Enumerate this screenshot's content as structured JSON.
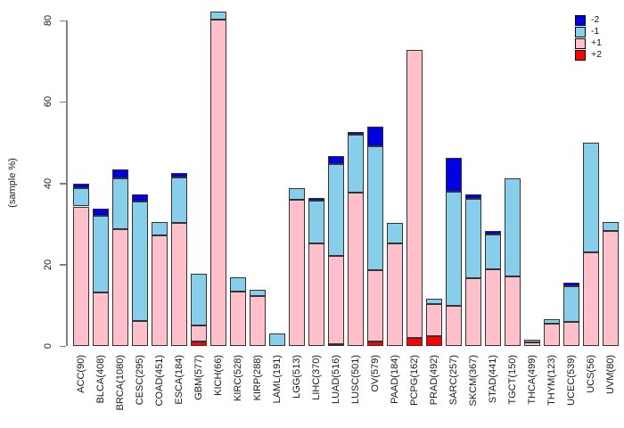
{
  "chart_data": {
    "type": "bar",
    "subtype": "stacked-vertical",
    "title": "",
    "xlabel": "",
    "ylabel": "(sample %)",
    "ylim": [
      0,
      80
    ],
    "yticks": [
      0,
      20,
      40,
      60,
      80
    ],
    "grid": false,
    "legend_position": "top-right",
    "legend": [
      {
        "label": "-2",
        "color": "#0000E0"
      },
      {
        "label": "-1",
        "color": "#87CEEB"
      },
      {
        "label": "+1",
        "color": "#FFC0CB"
      },
      {
        "label": "+2",
        "color": "#FF0000"
      }
    ],
    "categories": [
      "ACC(90)",
      "BLCA(408)",
      "BRCA(1080)",
      "CESC(295)",
      "COAD(451)",
      "ESCA(184)",
      "GBM(577)",
      "KICH(66)",
      "KIRC(528)",
      "KIRP(288)",
      "LAML(191)",
      "LGG(513)",
      "LIHC(370)",
      "LUAD(516)",
      "LUSC(501)",
      "OV(579)",
      "PAAD(184)",
      "PCPG(162)",
      "PRAD(492)",
      "SARC(257)",
      "SKCM(367)",
      "STAD(441)",
      "TGCT(150)",
      "THCA(499)",
      "THYM(123)",
      "UCEC(539)",
      "UCS(56)",
      "UVM(80)"
    ],
    "stack_order_bottom_to_top": [
      "+2",
      "+1",
      "-1",
      "-2"
    ],
    "series": [
      {
        "name": "+2",
        "color": "#FF0000",
        "values": [
          0,
          0,
          0,
          0,
          0,
          0,
          1.0,
          0,
          0,
          0,
          0,
          0,
          0,
          0.5,
          0,
          1.0,
          0,
          2.0,
          2.5,
          0,
          0,
          0,
          0,
          0,
          0,
          0,
          0,
          0
        ]
      },
      {
        "name": "+1",
        "color": "#FFC0CB",
        "values": [
          34.3,
          13.2,
          28.8,
          6.1,
          27.1,
          30.3,
          4.0,
          80.3,
          13.3,
          12.3,
          0,
          35.9,
          25.3,
          21.7,
          37.6,
          17.6,
          25.3,
          70.7,
          7.7,
          9.8,
          16.7,
          18.9,
          17.1,
          0.8,
          5.4,
          6.0,
          23.1,
          28.3
        ]
      },
      {
        "name": "-1",
        "color": "#87CEEB",
        "values": [
          4.4,
          18.9,
          12.4,
          29.5,
          3.4,
          11.1,
          12.8,
          2.0,
          3.6,
          1.5,
          3.0,
          2.9,
          10.4,
          22.5,
          14.4,
          30.5,
          5.0,
          0,
          1.4,
          28.1,
          19.4,
          8.4,
          24.1,
          0.7,
          1.1,
          8.7,
          26.8,
          2.1
        ]
      },
      {
        "name": "-2",
        "color": "#0000E0",
        "values": [
          1.3,
          1.6,
          2.2,
          1.7,
          0,
          1.1,
          0,
          0,
          0,
          0,
          0,
          0,
          0.6,
          1.9,
          0.6,
          4.9,
          0,
          0,
          0,
          8.3,
          1.1,
          0.9,
          0,
          0,
          0,
          0.9,
          0,
          0
        ]
      }
    ]
  }
}
